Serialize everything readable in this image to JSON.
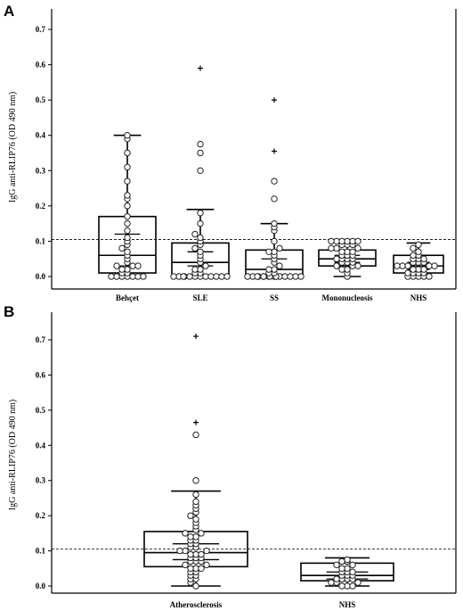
{
  "chart_data": [
    {
      "type": "box",
      "panel_label": "A",
      "ylabel": "IgG anti-RLIP76 (OD 490 nm)",
      "xlabel": "",
      "ylim": [
        -0.02,
        0.75
      ],
      "yticks": [
        0.0,
        0.1,
        0.2,
        0.3,
        0.4,
        0.5,
        0.6,
        0.7
      ],
      "ytick_labels": [
        "0.0",
        "0.1",
        "0.2",
        "0.3",
        "0.4",
        "0.5",
        "0.6",
        "0.7"
      ],
      "reference_line": 0.105,
      "categories": [
        "Behçet",
        "SLE",
        "SS",
        "Mononucleosis",
        "NHS"
      ],
      "boxes": [
        {
          "name": "Behçet",
          "q1": 0.01,
          "median": 0.06,
          "q3": 0.17,
          "whisker_low": 0.0,
          "whisker_high": 0.4,
          "ci": [
            0.03,
            0.12
          ],
          "points": [
            0.0,
            0.0,
            0.0,
            0.0,
            0.0,
            0.0,
            0.0,
            0.01,
            0.01,
            0.02,
            0.02,
            0.03,
            0.03,
            0.03,
            0.04,
            0.05,
            0.06,
            0.07,
            0.08,
            0.09,
            0.1,
            0.11,
            0.13,
            0.15,
            0.17,
            0.2,
            0.22,
            0.23,
            0.27,
            0.31,
            0.35,
            0.39,
            0.4
          ]
        },
        {
          "name": "SLE",
          "q1": 0.0,
          "median": 0.04,
          "q3": 0.095,
          "whisker_low": 0.0,
          "whisker_high": 0.19,
          "ci": [
            0.03,
            0.07
          ],
          "points": [
            0.0,
            0.0,
            0.0,
            0.0,
            0.0,
            0.0,
            0.0,
            0.0,
            0.0,
            0.0,
            0.0,
            0.0,
            0.01,
            0.01,
            0.02,
            0.02,
            0.03,
            0.04,
            0.05,
            0.06,
            0.07,
            0.08,
            0.09,
            0.1,
            0.11,
            0.12,
            0.15,
            0.18,
            0.3,
            0.35,
            0.375
          ],
          "outliers": [
            0.59
          ]
        },
        {
          "name": "SS",
          "q1": 0.0,
          "median": 0.02,
          "q3": 0.075,
          "whisker_low": 0.0,
          "whisker_high": 0.15,
          "ci": [
            0.005,
            0.05
          ],
          "points": [
            0.0,
            0.0,
            0.0,
            0.0,
            0.0,
            0.0,
            0.0,
            0.0,
            0.0,
            0.0,
            0.0,
            0.0,
            0.0,
            0.0,
            0.0,
            0.01,
            0.01,
            0.02,
            0.02,
            0.03,
            0.04,
            0.05,
            0.06,
            0.07,
            0.07,
            0.08,
            0.1,
            0.13,
            0.14,
            0.15,
            0.22,
            0.27
          ],
          "outliers": [
            0.355,
            0.5
          ]
        },
        {
          "name": "Mononucleosis",
          "q1": 0.03,
          "median": 0.05,
          "q3": 0.075,
          "whisker_low": 0.0,
          "whisker_high": 0.1,
          "ci": [
            0.04,
            0.06
          ],
          "points": [
            0.0,
            0.01,
            0.02,
            0.02,
            0.03,
            0.03,
            0.03,
            0.04,
            0.04,
            0.04,
            0.05,
            0.05,
            0.05,
            0.05,
            0.06,
            0.06,
            0.06,
            0.07,
            0.07,
            0.07,
            0.08,
            0.08,
            0.08,
            0.09,
            0.09,
            0.09,
            0.1,
            0.1,
            0.1,
            0.1,
            0.1,
            0.1
          ]
        },
        {
          "name": "NHS",
          "q1": 0.01,
          "median": 0.03,
          "q3": 0.06,
          "whisker_low": 0.0,
          "whisker_high": 0.095,
          "ci": [
            0.02,
            0.04
          ],
          "points": [
            0.0,
            0.0,
            0.0,
            0.0,
            0.0,
            0.01,
            0.01,
            0.01,
            0.01,
            0.02,
            0.02,
            0.02,
            0.03,
            0.03,
            0.03,
            0.03,
            0.03,
            0.04,
            0.04,
            0.04,
            0.05,
            0.05,
            0.05,
            0.06,
            0.06,
            0.07,
            0.08,
            0.09
          ]
        }
      ]
    },
    {
      "type": "box",
      "panel_label": "B",
      "ylabel": "IgG anti-RLIP76 (OD 490 nm)",
      "xlabel": "",
      "ylim": [
        -0.02,
        0.75
      ],
      "yticks": [
        0.0,
        0.1,
        0.2,
        0.3,
        0.4,
        0.5,
        0.6,
        0.7
      ],
      "ytick_labels": [
        "0.0",
        "0.1",
        "0.2",
        "0.3",
        "0.4",
        "0.5",
        "0.6",
        "0.7"
      ],
      "reference_line": 0.105,
      "categories": [
        "Atherosclerosis",
        "NHS"
      ],
      "boxes": [
        {
          "name": "Atherosclerosis",
          "q1": 0.055,
          "median": 0.095,
          "q3": 0.155,
          "whisker_low": 0.0,
          "whisker_high": 0.27,
          "ci": [
            0.075,
            0.12
          ],
          "points": [
            0.0,
            0.01,
            0.02,
            0.02,
            0.03,
            0.03,
            0.04,
            0.04,
            0.05,
            0.05,
            0.05,
            0.06,
            0.06,
            0.07,
            0.07,
            0.07,
            0.08,
            0.08,
            0.08,
            0.09,
            0.09,
            0.09,
            0.1,
            0.1,
            0.1,
            0.11,
            0.11,
            0.12,
            0.12,
            0.13,
            0.13,
            0.14,
            0.14,
            0.15,
            0.15,
            0.16,
            0.17,
            0.18,
            0.19,
            0.2,
            0.21,
            0.22,
            0.23,
            0.24,
            0.26,
            0.3,
            0.43
          ],
          "outliers": [
            0.465,
            0.71
          ]
        },
        {
          "name": "NHS",
          "q1": 0.015,
          "median": 0.03,
          "q3": 0.065,
          "whisker_low": 0.0,
          "whisker_high": 0.08,
          "ci": [
            0.02,
            0.04
          ],
          "points": [
            0.0,
            0.0,
            0.0,
            0.01,
            0.01,
            0.01,
            0.02,
            0.02,
            0.02,
            0.02,
            0.03,
            0.03,
            0.03,
            0.04,
            0.04,
            0.04,
            0.05,
            0.05,
            0.06,
            0.06,
            0.07,
            0.07,
            0.075
          ]
        }
      ]
    }
  ]
}
